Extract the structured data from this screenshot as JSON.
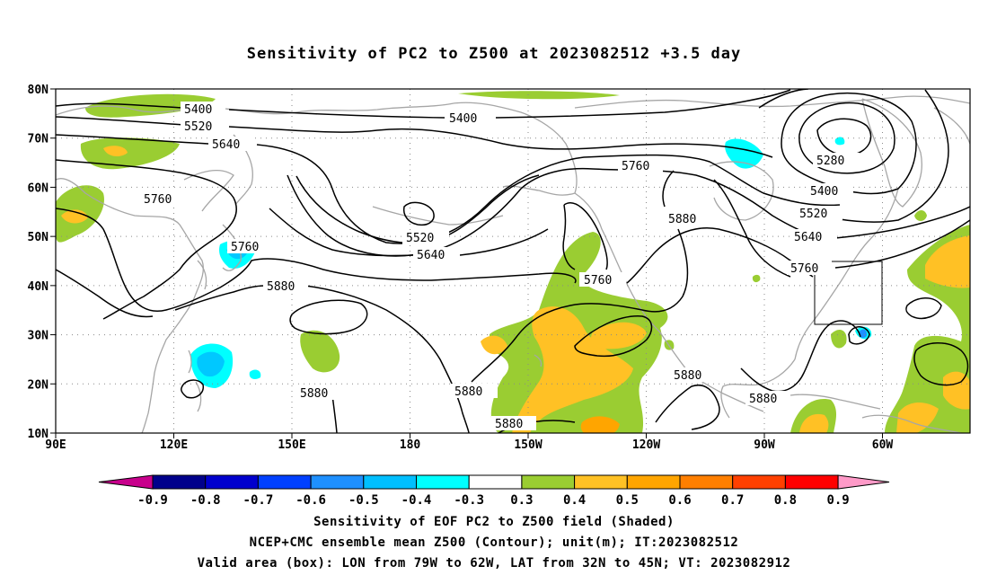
{
  "title": "Sensitivity of PC2 to Z500 at 2023082512 +3.5 day",
  "map": {
    "lat_labels": [
      "80N",
      "70N",
      "60N",
      "50N",
      "40N",
      "30N",
      "20N",
      "10N"
    ],
    "lon_labels": [
      "90E",
      "120E",
      "150E",
      "180",
      "150W",
      "120W",
      "90W",
      "60W"
    ],
    "colors": {
      "coast": "#a6a6a6",
      "grid": "#8a8a8a",
      "contour": "#000000",
      "pos_03": "#9acd32",
      "pos_04": "#ffc125",
      "pos_05": "#ffa500",
      "neg_03": "#00ffff",
      "neg_04": "#00c8ff",
      "neg_05": "#1e90ff"
    },
    "contour_labels": {
      "c5280": "5280",
      "c5400": "5400",
      "c5520": "5520",
      "c5640": "5640",
      "c5760": "5760",
      "c5880": "5880"
    },
    "valid_box": {
      "lon_from": "79W",
      "lon_to": "62W",
      "lat_from": "32N",
      "lat_to": "45N"
    }
  },
  "colorbar": {
    "labels": [
      "-0.9",
      "-0.8",
      "-0.7",
      "-0.6",
      "-0.5",
      "-0.4",
      "-0.3",
      "0.3",
      "0.4",
      "0.5",
      "0.6",
      "0.7",
      "0.8",
      "0.9"
    ],
    "colors": [
      "#c8008c",
      "#00008b",
      "#0000cd",
      "#0040ff",
      "#1e90ff",
      "#00bfff",
      "#00ffff",
      "#ffffff",
      "#9acd32",
      "#ffc125",
      "#ffa500",
      "#ff7f00",
      "#ff4000",
      "#ff0000",
      "#ff9ac8"
    ]
  },
  "footer": {
    "line1": "Sensitivity of EOF PC2 to Z500 field (Shaded)",
    "line2": "NCEP+CMC ensemble mean Z500 (Contour); unit(m); IT:2023082512",
    "line3": "Valid area (box): LON from 79W to 62W, LAT from 32N to 45N; VT: 2023082912"
  }
}
